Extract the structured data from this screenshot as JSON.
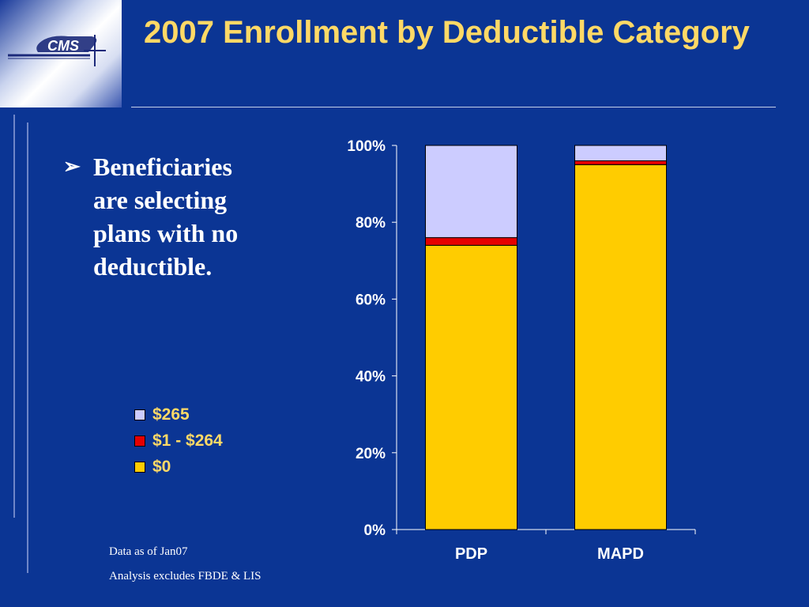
{
  "title": "2007 Enrollment by Deductible Category",
  "logo": {
    "text": "CMS",
    "icon": "cms-logo"
  },
  "bullet": {
    "icon": "arrow-bullet-icon",
    "text": "Beneficiaries are selecting plans with no deductible."
  },
  "notes": [
    "Data as of Jan07",
    "Analysis excludes FBDE & LIS"
  ],
  "chart_data": {
    "type": "bar",
    "stacked": true,
    "categories": [
      "PDP",
      "MAPD"
    ],
    "series": [
      {
        "name": "$0",
        "values": [
          74,
          95
        ],
        "color": "#ffcc00"
      },
      {
        "name": "$1 - $264",
        "values": [
          2,
          1
        ],
        "color": "#e60000"
      },
      {
        "name": "$265",
        "values": [
          24,
          4
        ],
        "color": "#ccccff"
      }
    ],
    "yticks": [
      "0%",
      "20%",
      "40%",
      "60%",
      "80%",
      "100%"
    ],
    "ylim": [
      0,
      100
    ],
    "legend_position": "left",
    "grid": false
  }
}
